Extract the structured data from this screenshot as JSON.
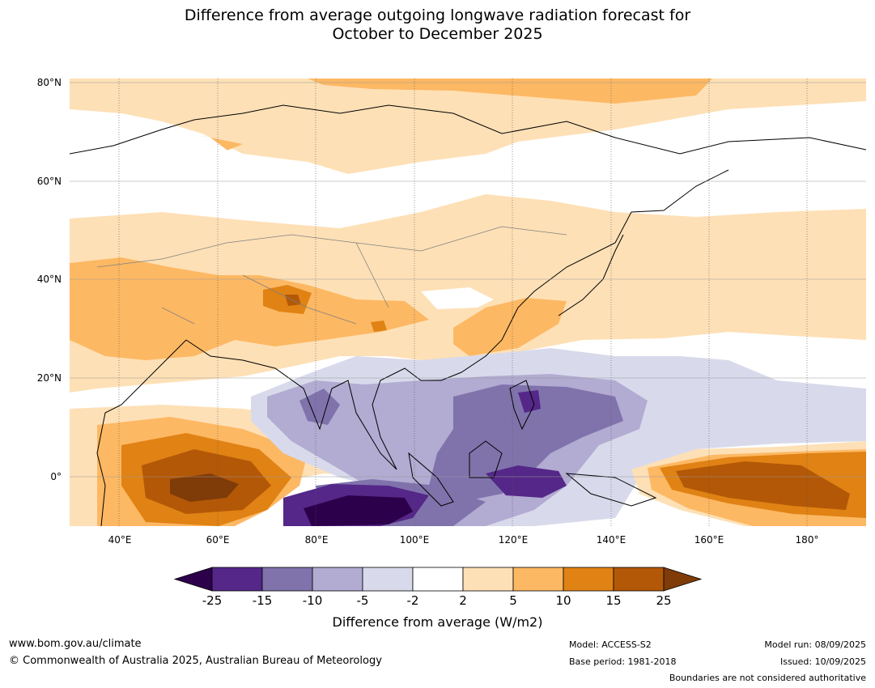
{
  "title": {
    "line1": "Difference from average outgoing longwave radiation forecast for",
    "line2": "October to December 2025"
  },
  "map": {
    "lat_ticks": [
      "80°N",
      "60°N",
      "40°N",
      "20°N",
      "0°"
    ],
    "lon_ticks": [
      "40°E",
      "60°E",
      "80°E",
      "100°E",
      "120°E",
      "140°E",
      "160°E",
      "180°"
    ],
    "extent": {
      "lon": [
        30,
        192
      ],
      "lat": [
        -10,
        81
      ]
    },
    "boundary_color": "#000000",
    "border_color": "#808080"
  },
  "colorbar": {
    "ticks": [
      "-25",
      "-15",
      "-10",
      "-5",
      "-2",
      "2",
      "5",
      "10",
      "15",
      "25"
    ],
    "colors": [
      "#2d004b",
      "#542788",
      "#8073ac",
      "#b2abd2",
      "#d8daeb",
      "#ffffff",
      "#fee0b6",
      "#fdb863",
      "#e08214",
      "#b35806",
      "#7f3b08"
    ],
    "label": "Difference from average (W/m2)"
  },
  "footer": {
    "website": "www.bom.gov.au/climate",
    "copyright": "© Commonwealth of Australia 2025, Australian Bureau of Meteorology",
    "model": "Model: ACCESS-S2",
    "base_period": "Base period: 1981-2018",
    "model_run": "Model run: 08/09/2025",
    "issued": "Issued: 10/09/2025",
    "disclaimer": "Boundaries are not considered authoritative"
  }
}
